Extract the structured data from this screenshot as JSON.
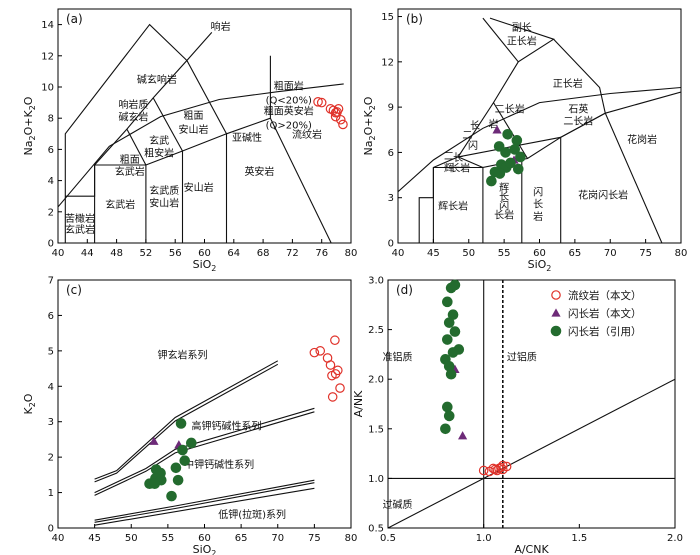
{
  "colors": {
    "rhyolite": "#e0322a",
    "tri": "#6d2a78",
    "dot": "#236b2e",
    "line": "#111111"
  },
  "chart_data": [
    {
      "id": "a",
      "type": "scatter",
      "panel_label": "(a)",
      "xlabel": "SiO",
      "xlabel_sub": "2",
      "ylabel": "Na",
      "ylabel_sub1": "2",
      "ylabel_mid": "O+K",
      "ylabel_sub2": "2",
      "ylabel_end": "O",
      "xlim": [
        40,
        80
      ],
      "ylim": [
        0,
        15
      ],
      "xticks": [
        40,
        44,
        48,
        52,
        56,
        60,
        64,
        68,
        72,
        76,
        80
      ],
      "yticks": [
        0,
        2,
        4,
        6,
        8,
        10,
        12,
        14
      ],
      "zones": [
        {
          "text": "响岩",
          "x": 62.2,
          "y": 13.9
        },
        {
          "text": "碱玄响岩",
          "x": 53.5,
          "y": 10.5
        },
        {
          "text": "粗面岩",
          "x": 71.5,
          "y": 10.1
        },
        {
          "text": "(Q<20%)",
          "x": 71.5,
          "y": 9.2
        },
        {
          "text": "粗面英安岩",
          "x": 71.5,
          "y": 8.5
        },
        {
          "text": "(Q>20%)",
          "x": 71.5,
          "y": 7.6
        },
        {
          "text": "响岩质",
          "x": 50.3,
          "y": 8.9
        },
        {
          "text": "碱玄岩",
          "x": 50.3,
          "y": 8.1
        },
        {
          "text": "粗面",
          "x": 58.5,
          "y": 8.2
        },
        {
          "text": "安山岩",
          "x": 58.5,
          "y": 7.3
        },
        {
          "text": "玄武",
          "x": 53.8,
          "y": 6.6
        },
        {
          "text": "粗安岩",
          "x": 53.8,
          "y": 5.8
        },
        {
          "text": "粗面",
          "x": 49.8,
          "y": 5.4
        },
        {
          "text": "玄武岩",
          "x": 49.8,
          "y": 4.6
        },
        {
          "text": "亚碱性",
          "x": 65.8,
          "y": 6.8
        },
        {
          "text": "流纹岩",
          "x": 74.0,
          "y": 7.0
        },
        {
          "text": "英安岩",
          "x": 67.5,
          "y": 4.6
        },
        {
          "text": "玄武质",
          "x": 54.5,
          "y": 3.4
        },
        {
          "text": "安山岩",
          "x": 54.5,
          "y": 2.6
        },
        {
          "text": "安山岩",
          "x": 59.2,
          "y": 3.6
        },
        {
          "text": "玄武岩",
          "x": 48.5,
          "y": 2.5
        },
        {
          "text": "苦橄岩",
          "x": 43.0,
          "y": 1.6
        },
        {
          "text": "玄武岩",
          "x": 43.0,
          "y": 0.9
        }
      ],
      "series": [
        {
          "name": "流纹岩",
          "marker": "circle",
          "points": [
            [
              75.5,
              9.05
            ],
            [
              76.0,
              9.0
            ],
            [
              77.2,
              8.6
            ],
            [
              77.6,
              8.5
            ],
            [
              77.9,
              8.35
            ],
            [
              78.1,
              8.4
            ],
            [
              77.9,
              8.1
            ],
            [
              78.6,
              7.9
            ],
            [
              78.3,
              8.6
            ],
            [
              78.9,
              7.6
            ]
          ]
        }
      ]
    },
    {
      "id": "b",
      "type": "scatter",
      "panel_label": "(b)",
      "xlabel": "SiO",
      "xlabel_sub": "2",
      "ylabel": "Na",
      "ylabel_sub1": "2",
      "ylabel_mid": "O+K",
      "ylabel_sub2": "2",
      "ylabel_end": "O",
      "xlim": [
        40,
        80
      ],
      "ylim": [
        0,
        15.5
      ],
      "xticks": [
        40,
        45,
        50,
        55,
        60,
        65,
        70,
        75,
        80
      ],
      "yticks": [
        0,
        3,
        6,
        9,
        12,
        15
      ],
      "zones": [
        {
          "text": "副长",
          "x": 57.5,
          "y": 14.3
        },
        {
          "text": "正长岩",
          "x": 57.5,
          "y": 13.4
        },
        {
          "text": "正长岩",
          "x": 64.0,
          "y": 10.6
        },
        {
          "text": "二长岩",
          "x": 55.8,
          "y": 8.9
        },
        {
          "text": "石英",
          "x": 65.5,
          "y": 8.9
        },
        {
          "text": "二长岩",
          "x": 65.5,
          "y": 8.1
        },
        {
          "text": "花岗岩",
          "x": 74.5,
          "y": 6.9
        },
        {
          "text": "二",
          "x": 49.8,
          "y": 7.2
        },
        {
          "text": "闪",
          "x": 50.6,
          "y": 6.5
        },
        {
          "text": "长",
          "x": 50.9,
          "y": 7.8
        },
        {
          "text": "岩",
          "x": 53.5,
          "y": 7.9
        },
        {
          "text": "二",
          "x": 47.2,
          "y": 5.8
        },
        {
          "text": "长",
          "x": 48.5,
          "y": 5.7
        },
        {
          "text": "辉",
          "x": 47.2,
          "y": 5.0
        },
        {
          "text": "长岩",
          "x": 48.8,
          "y": 5.0
        },
        {
          "text": "辉长岩",
          "x": 47.8,
          "y": 2.5
        },
        {
          "text": "辉",
          "x": 55.0,
          "y": 3.7
        },
        {
          "text": "长",
          "x": 55.0,
          "y": 3.1
        },
        {
          "text": "闪",
          "x": 55.0,
          "y": 2.5
        },
        {
          "text": "长岩",
          "x": 55.0,
          "y": 1.9
        },
        {
          "text": "闪",
          "x": 59.8,
          "y": 3.4
        },
        {
          "text": "长",
          "x": 59.8,
          "y": 2.6
        },
        {
          "text": "岩",
          "x": 59.8,
          "y": 1.8
        },
        {
          "text": "花岗闪长岩",
          "x": 69.0,
          "y": 3.2
        }
      ],
      "series": [
        {
          "name": "闪长岩（本文）",
          "marker": "triangle",
          "points": [
            [
              54.0,
              7.5
            ],
            [
              56.4,
              5.5
            ]
          ]
        },
        {
          "name": "闪长岩（引用）",
          "marker": "dot",
          "points": [
            [
              55.5,
              7.2
            ],
            [
              56.8,
              6.8
            ],
            [
              54.3,
              6.4
            ],
            [
              55.2,
              6.0
            ],
            [
              56.5,
              6.2
            ],
            [
              57.3,
              5.7
            ],
            [
              54.6,
              5.2
            ],
            [
              55.3,
              5.0
            ],
            [
              55.9,
              5.3
            ],
            [
              53.7,
              4.7
            ],
            [
              54.4,
              4.6
            ],
            [
              53.2,
              4.1
            ],
            [
              57.0,
              4.9
            ]
          ]
        }
      ]
    },
    {
      "id": "c",
      "type": "scatter",
      "panel_label": "(c)",
      "xlabel": "SiO",
      "xlabel_sub": "2",
      "ylabel": "K",
      "ylabel_sub1": "2",
      "ylabel_mid": "O",
      "ylabel_sub2": "",
      "ylabel_end": "",
      "xlim": [
        40,
        80
      ],
      "ylim": [
        0,
        7
      ],
      "xticks": [
        40,
        45,
        50,
        55,
        60,
        65,
        70,
        75,
        80
      ],
      "yticks": [
        0,
        1,
        2,
        3,
        4,
        5,
        6,
        7
      ],
      "zones": [
        {
          "text": "钾玄岩系列",
          "x": 57.0,
          "y": 4.9
        },
        {
          "text": "高钾钙碱性系列",
          "x": 63.0,
          "y": 2.9
        },
        {
          "text": "中钾钙碱性系列",
          "x": 62.0,
          "y": 1.8
        },
        {
          "text": "低钾(拉斑)系列",
          "x": 66.5,
          "y": 0.4
        }
      ],
      "series": [
        {
          "name": "流纹岩（本文）",
          "marker": "circle",
          "points": [
            [
              75.0,
              4.95
            ],
            [
              75.8,
              5.0
            ],
            [
              77.8,
              5.3
            ],
            [
              76.8,
              4.8
            ],
            [
              78.2,
              4.45
            ],
            [
              77.2,
              4.6
            ],
            [
              77.4,
              4.3
            ],
            [
              77.9,
              4.35
            ],
            [
              78.5,
              3.95
            ],
            [
              77.5,
              3.7
            ]
          ]
        },
        {
          "name": "闪长岩（本文）",
          "marker": "triangle",
          "points": [
            [
              53.1,
              2.45
            ],
            [
              56.5,
              2.35
            ]
          ]
        },
        {
          "name": "闪长岩（引用）",
          "marker": "dot",
          "points": [
            [
              56.8,
              2.95
            ],
            [
              57.0,
              2.2
            ],
            [
              58.2,
              2.4
            ],
            [
              57.3,
              1.9
            ],
            [
              53.4,
              1.65
            ],
            [
              54.0,
              1.55
            ],
            [
              53.3,
              1.4
            ],
            [
              54.1,
              1.35
            ],
            [
              52.5,
              1.25
            ],
            [
              53.2,
              1.25
            ],
            [
              56.1,
              1.7
            ],
            [
              56.4,
              1.35
            ],
            [
              55.5,
              0.9
            ]
          ]
        }
      ]
    },
    {
      "id": "d",
      "type": "scatter",
      "panel_label": "(d)",
      "xlabel": "A/CNK",
      "ylabel": "A/NK",
      "xlim": [
        0.5,
        2.0
      ],
      "ylim": [
        0.5,
        3.0
      ],
      "xticks": [
        0.5,
        1.0,
        1.5,
        2.0
      ],
      "xtick_labels": [
        "0.5",
        "1.0",
        "1.5",
        "2.0"
      ],
      "yticks": [
        0.5,
        1.0,
        1.5,
        2.0,
        2.5,
        3.0
      ],
      "ytick_labels": [
        "0.5",
        "1.0",
        "1.5",
        "2.0",
        "2.5",
        "3.0"
      ],
      "zones": [
        {
          "text": "准铝质",
          "x": 0.55,
          "y": 2.23
        },
        {
          "text": "过铝质",
          "x": 1.2,
          "y": 2.23
        },
        {
          "text": "过碱质",
          "x": 0.55,
          "y": 0.74
        }
      ],
      "legend": [
        {
          "marker": "circle",
          "text": "流纹岩（本文）"
        },
        {
          "marker": "triangle",
          "text": "闪长岩（本文）"
        },
        {
          "marker": "dot",
          "text": "闪长岩（引用）"
        }
      ],
      "series": [
        {
          "name": "流纹岩（本文）",
          "marker": "circle",
          "points": [
            [
              1.0,
              1.08
            ],
            [
              1.03,
              1.07
            ],
            [
              1.05,
              1.1
            ],
            [
              1.06,
              1.09
            ],
            [
              1.08,
              1.1
            ],
            [
              1.09,
              1.11
            ],
            [
              1.1,
              1.13
            ],
            [
              1.07,
              1.08
            ],
            [
              1.1,
              1.09
            ],
            [
              1.12,
              1.12
            ]
          ]
        },
        {
          "name": "闪长岩（本文）",
          "marker": "triangle",
          "points": [
            [
              0.85,
              2.1
            ],
            [
              0.89,
              1.43
            ]
          ]
        },
        {
          "name": "闪长岩（引用）",
          "marker": "dot",
          "points": [
            [
              0.83,
              2.92
            ],
            [
              0.85,
              2.95
            ],
            [
              0.81,
              2.78
            ],
            [
              0.84,
              2.65
            ],
            [
              0.82,
              2.57
            ],
            [
              0.85,
              2.48
            ],
            [
              0.81,
              2.4
            ],
            [
              0.87,
              2.3
            ],
            [
              0.84,
              2.27
            ],
            [
              0.8,
              2.2
            ],
            [
              0.82,
              2.13
            ],
            [
              0.83,
              2.05
            ],
            [
              0.81,
              1.72
            ],
            [
              0.82,
              1.63
            ],
            [
              0.8,
              1.5
            ]
          ]
        }
      ]
    }
  ]
}
